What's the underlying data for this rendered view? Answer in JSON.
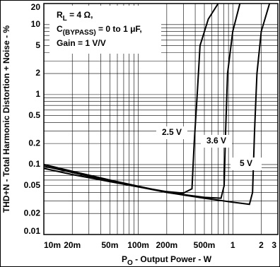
{
  "chart_data": {
    "type": "line",
    "annotation": [
      {
        "text": "R",
        "sub": "L",
        "rest": " = 4 Ω,"
      },
      {
        "text": "C",
        "sub": "(BYPASS)",
        "rest": " = 0 to 1 μF,"
      },
      {
        "text": "Gain = 1 V/V"
      }
    ],
    "x_label": {
      "text": "P",
      "sub": "O",
      "rest": " - Output Power - W"
    },
    "y_label": "THD+N - Total Harmonic Distortion + Noise - %",
    "log_x": true,
    "log_y": true,
    "grid": true,
    "xlim": [
      0.01,
      3
    ],
    "ylim": [
      0.01,
      20
    ],
    "xticks": [
      {
        "value": 0.01,
        "label": "10m"
      },
      {
        "value": 0.02,
        "label": "20m"
      },
      {
        "value": 0.05,
        "label": "50m"
      },
      {
        "value": 0.1,
        "label": "100m"
      },
      {
        "value": 0.2,
        "label": "200m"
      },
      {
        "value": 0.5,
        "label": "500m"
      },
      1,
      2,
      3
    ],
    "yticks": [
      0.01,
      0.02,
      0.05,
      0.1,
      0.2,
      0.5,
      1,
      2,
      5,
      10,
      20
    ],
    "xminor": [
      0.03,
      0.04,
      0.06,
      0.07,
      0.08,
      0.09,
      0.3,
      0.4,
      0.6,
      0.7,
      0.8,
      0.9
    ],
    "yminor": [
      0.03,
      0.04,
      0.06,
      0.07,
      0.08,
      0.09,
      0.3,
      0.4,
      0.6,
      0.7,
      0.8,
      0.9,
      3,
      4,
      6,
      7,
      8,
      9
    ],
    "series": [
      {
        "name": "2.5 V",
        "color": "#000000",
        "x": [
          0.01,
          0.02,
          0.05,
          0.1,
          0.2,
          0.3,
          0.37,
          0.39,
          0.42,
          0.45,
          0.55,
          0.7
        ],
        "values": [
          0.088,
          0.072,
          0.057,
          0.048,
          0.041,
          0.039,
          0.045,
          0.2,
          1,
          5,
          12,
          20
        ]
      },
      {
        "name": "3.6 V",
        "color": "#000000",
        "x": [
          0.01,
          0.02,
          0.05,
          0.1,
          0.2,
          0.5,
          0.75,
          0.81,
          0.84,
          0.88,
          1.0,
          1.19
        ],
        "values": [
          0.095,
          0.077,
          0.058,
          0.048,
          0.04,
          0.034,
          0.033,
          0.05,
          0.3,
          2,
          8,
          20
        ]
      },
      {
        "name": "5 V",
        "color": "#000000",
        "x": [
          0.01,
          0.02,
          0.05,
          0.1,
          0.2,
          0.5,
          1,
          1.5,
          1.62,
          1.7,
          1.8,
          2.0,
          2.45
        ],
        "values": [
          0.1,
          0.08,
          0.06,
          0.049,
          0.04,
          0.033,
          0.029,
          0.027,
          0.04,
          0.3,
          2,
          8,
          20
        ]
      }
    ]
  }
}
